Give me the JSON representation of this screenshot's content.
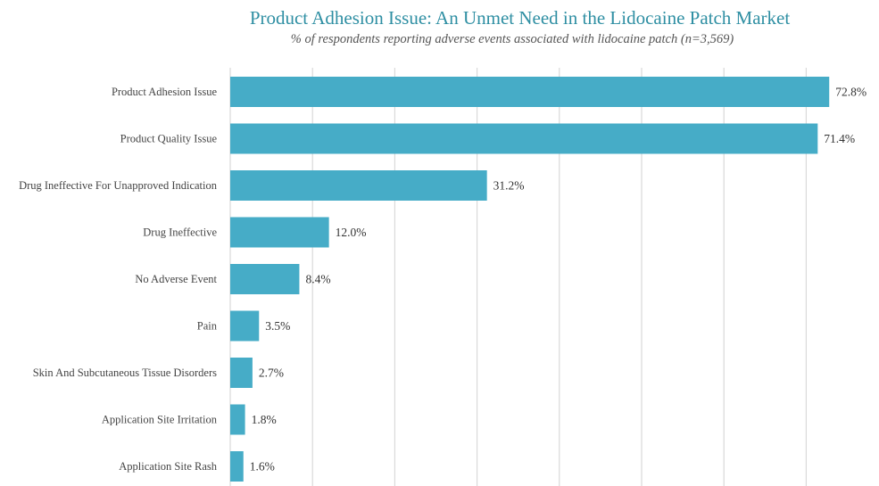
{
  "chart_data": {
    "type": "bar",
    "orientation": "horizontal",
    "title": "Product Adhesion Issue: An Unmet Need in the Lidocaine Patch Market",
    "subtitle": "% of respondents reporting adverse events associated with lidocaine patch (n=3,569)",
    "categories": [
      "Product Adhesion Issue",
      "Product Quality Issue",
      "Drug Ineffective For Unapproved Indication",
      "Drug Ineffective",
      "No Adverse Event",
      "Pain",
      "Skin And Subcutaneous Tissue Disorders",
      "Application Site Irritation",
      "Application Site Rash"
    ],
    "values": [
      72.8,
      71.4,
      31.2,
      12.0,
      8.4,
      3.5,
      2.7,
      1.8,
      1.6
    ],
    "value_labels": [
      "72.8%",
      "71.4%",
      "31.2%",
      "12.0%",
      "8.4%",
      "3.5%",
      "2.7%",
      "1.8%",
      "1.6%"
    ],
    "xlim": [
      0,
      80
    ],
    "gridline_step": 10,
    "grid": true,
    "bar_color": "#46acc7",
    "title_color": "#2f8fa3"
  }
}
